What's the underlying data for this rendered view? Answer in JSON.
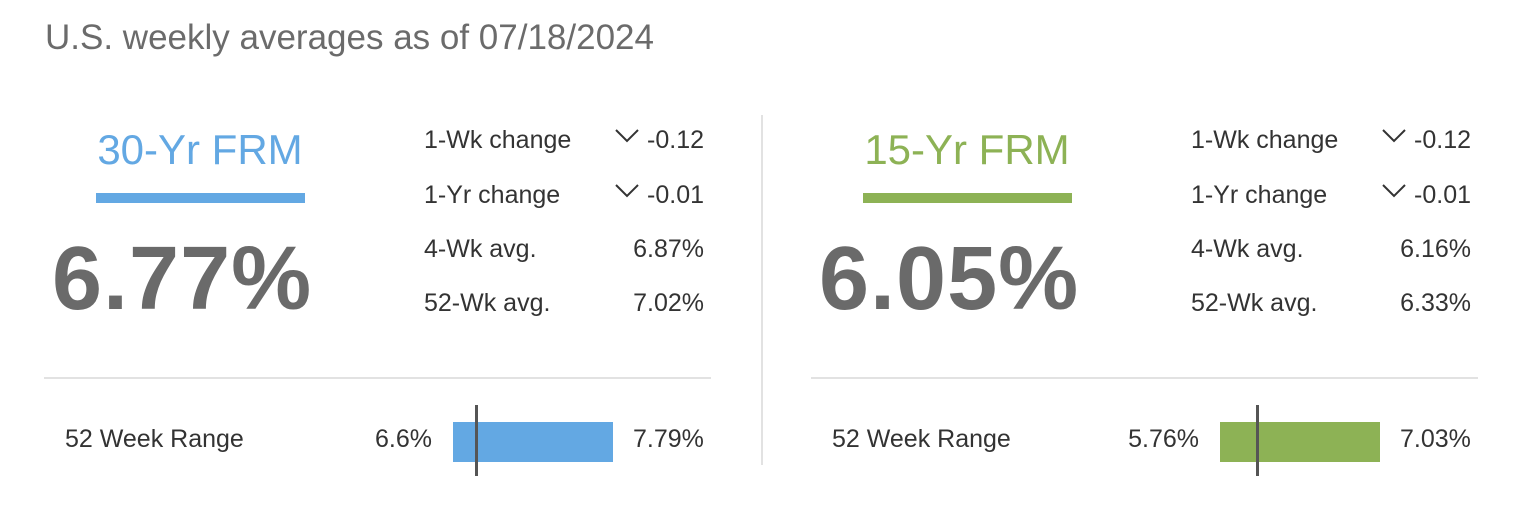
{
  "header": {
    "title": "U.S. weekly averages as of 07/18/2024"
  },
  "panels": [
    {
      "name": "30-Yr FRM",
      "color": "#63a8e3",
      "rate": {
        "value": 6.77,
        "label": "6.77%"
      },
      "stats": [
        {
          "label": "1-Wk change",
          "value": "-0.12",
          "trend": "down"
        },
        {
          "label": "1-Yr change",
          "value": "-0.01",
          "trend": "down"
        },
        {
          "label": "4-Wk avg.",
          "value": "6.87%"
        },
        {
          "label": "52-Wk avg.",
          "value": "7.02%"
        }
      ],
      "range": {
        "label": "52 Week Range",
        "low": {
          "value": 6.6,
          "label": "6.6%"
        },
        "high": {
          "value": 7.79,
          "label": "7.79%"
        }
      }
    },
    {
      "name": "15-Yr FRM",
      "color": "#8db255",
      "rate": {
        "value": 6.05,
        "label": "6.05%"
      },
      "stats": [
        {
          "label": "1-Wk change",
          "value": "-0.12",
          "trend": "down"
        },
        {
          "label": "1-Yr change",
          "value": "-0.01",
          "trend": "down"
        },
        {
          "label": "4-Wk avg.",
          "value": "6.16%"
        },
        {
          "label": "52-Wk avg.",
          "value": "6.33%"
        }
      ],
      "range": {
        "label": "52 Week Range",
        "low": {
          "value": 5.76,
          "label": "5.76%"
        },
        "high": {
          "value": 7.03,
          "label": "7.03%"
        }
      }
    }
  ]
}
